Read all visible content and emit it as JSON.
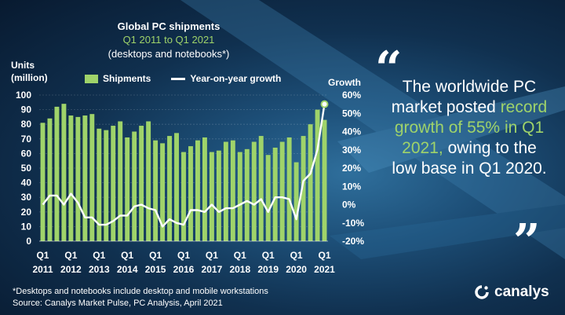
{
  "header": {
    "title": "Global PC shipments",
    "subtitle1": "Q1 2011 to Q1 2021",
    "subtitle2": "(desktops and notebooks*)"
  },
  "axis_labels": {
    "left_line1": "Units",
    "left_line2": "(million)",
    "right": "Growth"
  },
  "legend": {
    "bars": "Shipments",
    "line": "Year-on-year growth"
  },
  "quote": {
    "part1": "The worldwide PC market posted ",
    "highlight": "record growth of 55% in Q1 2021,",
    "part2": " owing to the low base in Q1 2020.",
    "open_mark": "“",
    "close_mark": "”"
  },
  "footnote": "*Desktops and notebooks include desktop and mobile workstations",
  "source": "Source: Canalys Market Pulse, PC Analysis, April 2021",
  "brand": "canalys",
  "colors": {
    "bar": "#9fd36a",
    "line": "#ffffff",
    "highlight": "#9fd36a"
  },
  "chart_data": {
    "type": "bar",
    "title": "Global PC shipments",
    "x_tick_labels": [
      {
        "quarter": "Q1",
        "year": "2011"
      },
      {
        "quarter": "Q1",
        "year": "2012"
      },
      {
        "quarter": "Q1",
        "year": "2013"
      },
      {
        "quarter": "Q1",
        "year": "2014"
      },
      {
        "quarter": "Q1",
        "year": "2015"
      },
      {
        "quarter": "Q1",
        "year": "2016"
      },
      {
        "quarter": "Q1",
        "year": "2017"
      },
      {
        "quarter": "Q1",
        "year": "2018"
      },
      {
        "quarter": "Q1",
        "year": "2019"
      },
      {
        "quarter": "Q1",
        "year": "2020"
      },
      {
        "quarter": "Q1",
        "year": "2021"
      }
    ],
    "y_left": {
      "label": "Units (million)",
      "min": 0,
      "max": 100,
      "ticks": [
        0,
        10,
        20,
        30,
        40,
        50,
        60,
        70,
        80,
        90,
        100
      ]
    },
    "y_right": {
      "label": "Growth",
      "min": -20,
      "max": 60,
      "ticks": [
        "-20%",
        "-10%",
        "0%",
        "10%",
        "20%",
        "30%",
        "40%",
        "50%",
        "60%"
      ]
    },
    "series": [
      {
        "name": "Shipments",
        "type": "bar",
        "values": [
          81,
          84,
          92,
          94,
          86,
          85,
          86,
          87,
          77,
          76,
          79,
          82,
          71,
          75,
          79,
          82,
          69,
          67,
          72,
          74,
          61,
          65,
          69,
          71,
          61,
          62,
          68,
          69,
          61,
          63,
          68,
          72,
          59,
          64,
          68,
          71,
          54,
          72,
          80,
          90,
          83
        ]
      },
      {
        "name": "Year-on-year growth",
        "type": "line",
        "unit": "%",
        "values": [
          0,
          5,
          5,
          0,
          6,
          1,
          -7,
          -7,
          -11,
          -11,
          -9,
          -6,
          -6,
          -1,
          0,
          -2,
          -3,
          -12,
          -8,
          -10,
          -11,
          -3,
          -3,
          -4,
          0,
          -4,
          -2,
          -2,
          0,
          2,
          0,
          3,
          -4,
          4,
          4,
          3,
          -8,
          13,
          17,
          30,
          55
        ]
      }
    ],
    "annotation": "55%"
  }
}
